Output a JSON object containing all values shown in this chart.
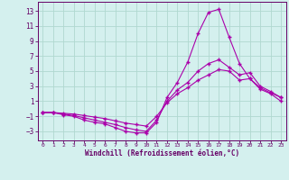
{
  "xlabel": "Windchill (Refroidissement éolien,°C)",
  "background_color": "#d4f0ee",
  "grid_color": "#b0d8d0",
  "line_color": "#aa00aa",
  "spine_color": "#660066",
  "tick_color": "#660066",
  "label_color": "#660066",
  "yticks": [
    -3,
    -1,
    1,
    3,
    5,
    7,
    9,
    11,
    13
  ],
  "xticks": [
    0,
    1,
    2,
    3,
    4,
    5,
    6,
    7,
    8,
    9,
    10,
    11,
    12,
    13,
    14,
    15,
    16,
    17,
    18,
    19,
    20,
    21,
    22,
    23
  ],
  "xlim": [
    -0.5,
    23.5
  ],
  "ylim": [
    -4.2,
    14.2
  ],
  "line1_x": [
    0,
    1,
    2,
    3,
    4,
    5,
    6,
    7,
    8,
    9,
    10,
    11,
    12,
    13,
    14,
    15,
    16,
    17,
    18,
    19,
    20,
    21,
    22,
    23
  ],
  "line1_y": [
    -0.5,
    -0.5,
    -0.8,
    -1.0,
    -1.5,
    -1.8,
    -2.0,
    -2.5,
    -3.0,
    -3.2,
    -3.2,
    -1.8,
    1.5,
    3.5,
    6.2,
    10.0,
    12.8,
    13.2,
    9.5,
    6.0,
    4.0,
    2.6,
    2.0,
    1.0
  ],
  "line2_x": [
    0,
    1,
    2,
    3,
    4,
    5,
    6,
    7,
    8,
    9,
    10,
    11,
    12,
    13,
    14,
    15,
    16,
    17,
    18,
    19,
    20,
    21,
    22,
    23
  ],
  "line2_y": [
    -0.5,
    -0.5,
    -0.7,
    -0.9,
    -1.2,
    -1.5,
    -1.8,
    -2.1,
    -2.5,
    -2.8,
    -3.0,
    -1.5,
    1.0,
    2.5,
    3.5,
    5.0,
    6.0,
    6.5,
    5.5,
    4.5,
    4.8,
    3.0,
    2.3,
    1.5
  ],
  "line3_x": [
    0,
    1,
    2,
    3,
    4,
    5,
    6,
    7,
    8,
    9,
    10,
    11,
    12,
    13,
    14,
    15,
    16,
    17,
    18,
    19,
    20,
    21,
    22,
    23
  ],
  "line3_y": [
    -0.5,
    -0.5,
    -0.6,
    -0.7,
    -0.9,
    -1.1,
    -1.3,
    -1.6,
    -1.9,
    -2.1,
    -2.3,
    -1.0,
    0.8,
    2.0,
    2.8,
    3.8,
    4.5,
    5.2,
    5.0,
    3.8,
    4.0,
    2.8,
    2.1,
    1.5
  ]
}
